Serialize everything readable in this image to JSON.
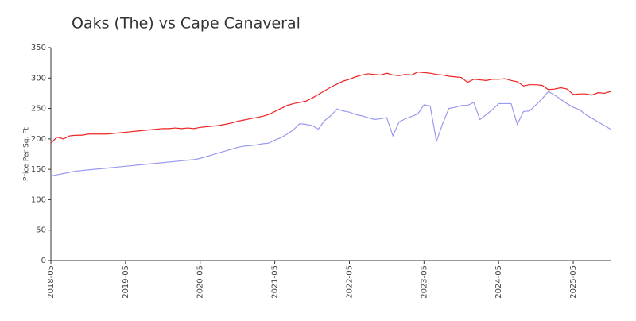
{
  "chart_data": {
    "type": "line",
    "title": "Oaks (The) vs Cape Canaveral",
    "y_label": "Price Per Sq. Ft",
    "x": [
      "2018-05",
      "2018-06",
      "2018-07",
      "2018-08",
      "2018-09",
      "2018-10",
      "2018-11",
      "2018-12",
      "2019-01",
      "2019-02",
      "2019-03",
      "2019-04",
      "2019-05",
      "2019-06",
      "2019-07",
      "2019-08",
      "2019-09",
      "2019-10",
      "2019-11",
      "2019-12",
      "2020-01",
      "2020-02",
      "2020-03",
      "2020-04",
      "2020-05",
      "2020-06",
      "2020-07",
      "2020-08",
      "2020-09",
      "2020-10",
      "2020-11",
      "2020-12",
      "2021-01",
      "2021-02",
      "2021-03",
      "2021-04",
      "2021-05",
      "2021-06",
      "2021-07",
      "2021-08",
      "2021-09",
      "2021-10",
      "2021-11",
      "2021-12",
      "2022-01",
      "2022-02",
      "2022-03",
      "2022-04",
      "2022-05",
      "2022-06",
      "2022-07",
      "2022-08",
      "2022-09",
      "2022-10",
      "2022-11",
      "2022-12",
      "2023-01",
      "2023-02",
      "2023-03",
      "2023-04",
      "2023-05",
      "2023-06",
      "2023-07",
      "2023-08",
      "2023-09",
      "2023-10",
      "2023-11",
      "2023-12",
      "2024-01",
      "2024-02",
      "2024-03",
      "2024-04",
      "2024-05",
      "2024-06",
      "2024-07",
      "2024-08",
      "2024-09",
      "2024-10",
      "2024-11",
      "2024-12",
      "2025-01",
      "2025-02",
      "2025-03",
      "2025-04",
      "2025-05",
      "2025-06",
      "2025-07",
      "2025-08",
      "2025-09",
      "2025-10",
      "2025-11"
    ],
    "xticks": [
      "2018-05",
      "2019-05",
      "2020-05",
      "2021-05",
      "2022-05",
      "2023-05",
      "2024-05",
      "2025-05"
    ],
    "series": [
      {
        "color": "#ee2222",
        "values": [
          193,
          203,
          200,
          205,
          206,
          206,
          208,
          208,
          208,
          208,
          209,
          210,
          211,
          212,
          213,
          214,
          215,
          216,
          217,
          217,
          218,
          217,
          218,
          217,
          219,
          220,
          221,
          222,
          224,
          226,
          229,
          231,
          233,
          235,
          237,
          240,
          245,
          250,
          255,
          258,
          260,
          262,
          267,
          273,
          279,
          285,
          290,
          295,
          298,
          302,
          305,
          307,
          306,
          305,
          308,
          305,
          304,
          306,
          305,
          310,
          309,
          308,
          306,
          305,
          303,
          302,
          301,
          293,
          298,
          297,
          296,
          298,
          298,
          299,
          296,
          294,
          287,
          289,
          289,
          288,
          281,
          282,
          284,
          282,
          273,
          274,
          274,
          272,
          276,
          275,
          278
        ]
      },
      {
        "color": "#9999ee",
        "values": [
          139,
          141,
          143,
          145,
          147,
          148,
          149,
          150,
          151,
          152,
          153,
          154,
          155,
          156,
          157,
          158,
          159,
          160,
          161,
          162,
          163,
          164,
          165,
          166,
          168,
          171,
          174,
          177,
          180,
          183,
          186,
          188,
          189,
          190,
          192,
          193,
          198,
          202,
          208,
          215,
          225,
          224,
          222,
          216,
          230,
          238,
          249,
          246,
          244,
          240,
          238,
          235,
          232,
          233,
          235,
          205,
          228,
          233,
          237,
          241,
          256,
          254,
          196,
          225,
          250,
          252,
          255,
          255,
          260,
          232,
          240,
          248,
          258,
          258,
          258,
          224,
          245,
          246,
          256,
          266,
          278,
          272,
          265,
          258,
          252,
          248,
          240,
          234,
          228,
          222,
          216
        ]
      }
    ],
    "ylim": [
      0,
      350
    ],
    "yticks": [
      0,
      50,
      100,
      150,
      200,
      250,
      300,
      350
    ]
  }
}
